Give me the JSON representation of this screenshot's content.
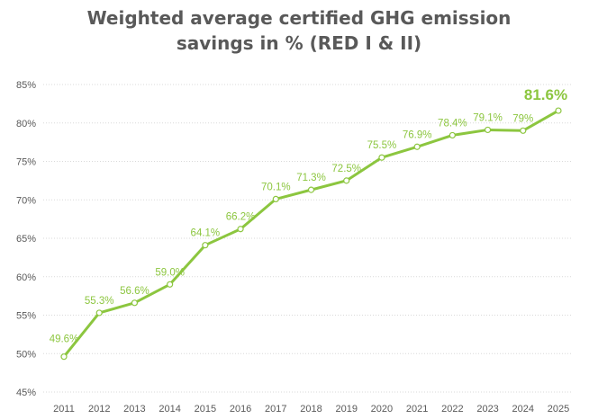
{
  "title_line1": "Weighted average certified GHG emission",
  "title_line2": "savings in % (RED I & II)",
  "colors": {
    "line": "#8cc63f",
    "grid": "#d9d9d9",
    "text": "#595959"
  },
  "chart_data": {
    "type": "line",
    "title": "Weighted average certified GHG emission savings in % (RED I & II)",
    "xlabel": "",
    "ylabel": "",
    "ylim": [
      45,
      85
    ],
    "yticks": [
      45,
      50,
      55,
      60,
      65,
      70,
      75,
      80,
      85
    ],
    "ytick_labels": [
      "45%",
      "50%",
      "55%",
      "60%",
      "65%",
      "70%",
      "75%",
      "80%",
      "85%"
    ],
    "grid": true,
    "categories": [
      "2011",
      "2012",
      "2013",
      "2014",
      "2015",
      "2016",
      "2017",
      "2018",
      "2019",
      "2020",
      "2021",
      "2022",
      "2023",
      "2024",
      "2025"
    ],
    "values": [
      49.6,
      55.3,
      56.6,
      59.0,
      64.1,
      66.2,
      70.1,
      71.3,
      72.5,
      75.5,
      76.9,
      78.4,
      79.1,
      79.0,
      81.6
    ],
    "data_labels": [
      "49.6%",
      "55.3%",
      "56.6%",
      "59.0%",
      "64.1%",
      "66.2%",
      "70.1%",
      "71.3%",
      "72.5%",
      "75.5%",
      "76.9%",
      "78.4%",
      "79.1%",
      "79%",
      "81.6%"
    ]
  }
}
